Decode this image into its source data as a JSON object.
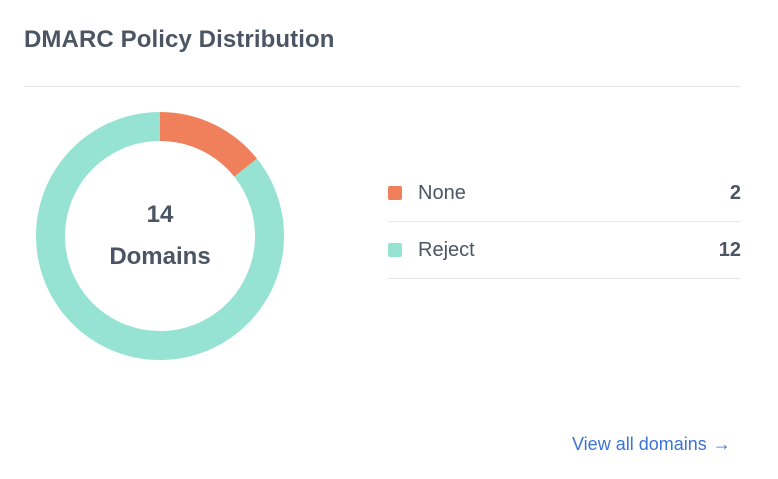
{
  "card": {
    "title": "DMARC Policy Distribution"
  },
  "donut": {
    "total": "14",
    "unit_label": "Domains"
  },
  "legend": [
    {
      "label": "None",
      "value": "2",
      "color": "#f0805b"
    },
    {
      "label": "Reject",
      "value": "12",
      "color": "#97e3d3"
    }
  ],
  "chart_data": {
    "type": "pie",
    "categories": [
      "None",
      "Reject"
    ],
    "values": [
      2,
      12
    ],
    "colors": [
      "#f0805b",
      "#97e3d3"
    ],
    "style": "donut",
    "center_text": [
      "14",
      "Domains"
    ]
  },
  "footer": {
    "link_label": "View all domains",
    "arrow": "→"
  }
}
